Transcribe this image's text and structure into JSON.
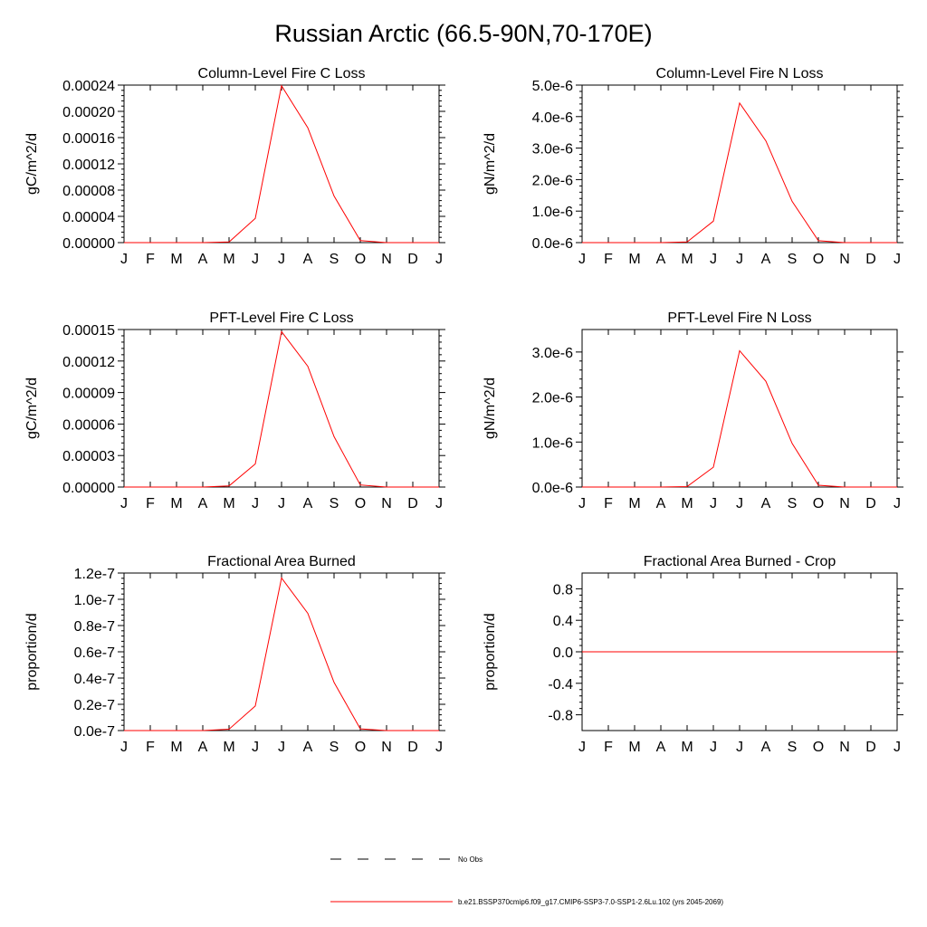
{
  "title": "Russian Arctic (66.5-90N,70-170E)",
  "chart_data": [
    {
      "type": "line",
      "title": "Column-Level Fire C Loss",
      "ylabel": "gC/m^2/d",
      "categories": [
        "J",
        "F",
        "M",
        "A",
        "M",
        "J",
        "J",
        "A",
        "S",
        "O",
        "N",
        "D",
        "J"
      ],
      "ylim": [
        0,
        0.00024
      ],
      "yticks": [
        0,
        4e-05,
        8e-05,
        0.00012,
        0.00016,
        0.0002,
        0.00024
      ],
      "ytick_labels": [
        "0.00000",
        "0.00004",
        "0.00008",
        "0.00012",
        "0.00016",
        "0.00020",
        "0.00024"
      ],
      "series": [
        {
          "name": "b.e21.BSSP370cmip6.f09_g17.CMIP6-SSP3-7.0-SSP1-2.6Lu.102 (yrs 2045-2069)",
          "color": "#ff0000",
          "values": [
            0,
            0,
            0,
            0,
            1e-06,
            3.7e-05,
            0.000239,
            0.000175,
            7.1e-05,
            3e-06,
            0,
            0,
            0
          ]
        }
      ]
    },
    {
      "type": "line",
      "title": "Column-Level Fire N Loss",
      "ylabel": "gN/m^2/d",
      "categories": [
        "J",
        "F",
        "M",
        "A",
        "M",
        "J",
        "J",
        "A",
        "S",
        "O",
        "N",
        "D",
        "J"
      ],
      "ylim": [
        0,
        5e-06
      ],
      "yticks": [
        0,
        1e-06,
        2e-06,
        3e-06,
        4e-06,
        5e-06
      ],
      "ytick_labels": [
        "0.0e-6",
        "1.0e-6",
        "2.0e-6",
        "3.0e-6",
        "4.0e-6",
        "5.0e-6"
      ],
      "series": [
        {
          "name": "b.e21.BSSP370cmip6.f09_g17.CMIP6-SSP3-7.0-SSP1-2.6Lu.102 (yrs 2045-2069)",
          "color": "#ff0000",
          "values": [
            0,
            0,
            0,
            0,
            2e-08,
            6.8e-07,
            4.43e-06,
            3.23e-06,
            1.31e-06,
            6e-08,
            0,
            0,
            0
          ]
        }
      ]
    },
    {
      "type": "line",
      "title": "PFT-Level Fire C Loss",
      "ylabel": "gC/m^2/d",
      "categories": [
        "J",
        "F",
        "M",
        "A",
        "M",
        "J",
        "J",
        "A",
        "S",
        "O",
        "N",
        "D",
        "J"
      ],
      "ylim": [
        0,
        0.00015
      ],
      "yticks": [
        0,
        3e-05,
        6e-05,
        9e-05,
        0.00012,
        0.00015
      ],
      "ytick_labels": [
        "0.00000",
        "0.00003",
        "0.00006",
        "0.00009",
        "0.00012",
        "0.00015"
      ],
      "series": [
        {
          "name": "b.e21.BSSP370cmip6.f09_g17.CMIP6-SSP3-7.0-SSP1-2.6Lu.102 (yrs 2045-2069)",
          "color": "#ff0000",
          "values": [
            0,
            0,
            0,
            0,
            1e-06,
            2.2e-05,
            0.000148,
            0.000115,
            4.8e-05,
            2e-06,
            0,
            0,
            0
          ]
        }
      ]
    },
    {
      "type": "line",
      "title": "PFT-Level Fire N Loss",
      "ylabel": "gN/m^2/d",
      "categories": [
        "J",
        "F",
        "M",
        "A",
        "M",
        "J",
        "J",
        "A",
        "S",
        "O",
        "N",
        "D",
        "J"
      ],
      "ylim": [
        0,
        3.5e-06
      ],
      "yticks": [
        0,
        1e-06,
        2e-06,
        3e-06
      ],
      "ytick_labels": [
        "0.0e-6",
        "1.0e-6",
        "2.0e-6",
        "3.0e-6"
      ],
      "series": [
        {
          "name": "b.e21.BSSP370cmip6.f09_g17.CMIP6-SSP3-7.0-SSP1-2.6Lu.102 (yrs 2045-2069)",
          "color": "#ff0000",
          "values": [
            0,
            0,
            0,
            0,
            1e-08,
            4.4e-07,
            3.03e-06,
            2.35e-06,
            9.7e-07,
            4e-08,
            0,
            0,
            0
          ]
        }
      ]
    },
    {
      "type": "line",
      "title": "Fractional Area Burned",
      "ylabel": "proportion/d",
      "categories": [
        "J",
        "F",
        "M",
        "A",
        "M",
        "J",
        "J",
        "A",
        "S",
        "O",
        "N",
        "D",
        "J"
      ],
      "ylim": [
        0,
        1.2e-07
      ],
      "yticks": [
        0,
        2e-08,
        4e-08,
        6e-08,
        8e-08,
        1e-07,
        1.2e-07
      ],
      "ytick_labels": [
        "0.0e-7",
        "0.2e-7",
        "0.4e-7",
        "0.6e-7",
        "0.8e-7",
        "1.0e-7",
        "1.2e-7"
      ],
      "series": [
        {
          "name": "b.e21.BSSP370cmip6.f09_g17.CMIP6-SSP3-7.0-SSP1-2.6Lu.102 (yrs 2045-2069)",
          "color": "#ff0000",
          "values": [
            0,
            0,
            0,
            0,
            1e-09,
            1.87e-08,
            1.163e-07,
            8.93e-08,
            3.67e-08,
            1.3e-09,
            0,
            0,
            0
          ]
        }
      ]
    },
    {
      "type": "line",
      "title": "Fractional Area Burned - Crop",
      "ylabel": "proportion/d",
      "categories": [
        "J",
        "F",
        "M",
        "A",
        "M",
        "J",
        "J",
        "A",
        "S",
        "O",
        "N",
        "D",
        "J"
      ],
      "ylim": [
        -1.0,
        1.0
      ],
      "yticks": [
        -0.8,
        -0.4,
        0.0,
        0.4,
        0.8
      ],
      "ytick_labels": [
        "-0.8",
        "-0.4",
        "0.0",
        "0.4",
        "0.8"
      ],
      "series": [
        {
          "name": "b.e21.BSSP370cmip6.f09_g17.CMIP6-SSP3-7.0-SSP1-2.6Lu.102 (yrs 2045-2069)",
          "color": "#ff0000",
          "values": [
            0,
            0,
            0,
            0,
            0,
            0,
            0,
            0,
            0,
            0,
            0,
            0,
            0
          ]
        }
      ]
    }
  ],
  "legend": {
    "placement": "bottom",
    "items": [
      {
        "label": "No Obs",
        "style": "dashed",
        "color": "#000000"
      },
      {
        "label": "b.e21.BSSP370cmip6.f09_g17.CMIP6-SSP3-7.0-SSP1-2.6Lu.102 (yrs 2045-2069)",
        "style": "solid",
        "color": "#ff0000"
      }
    ]
  }
}
